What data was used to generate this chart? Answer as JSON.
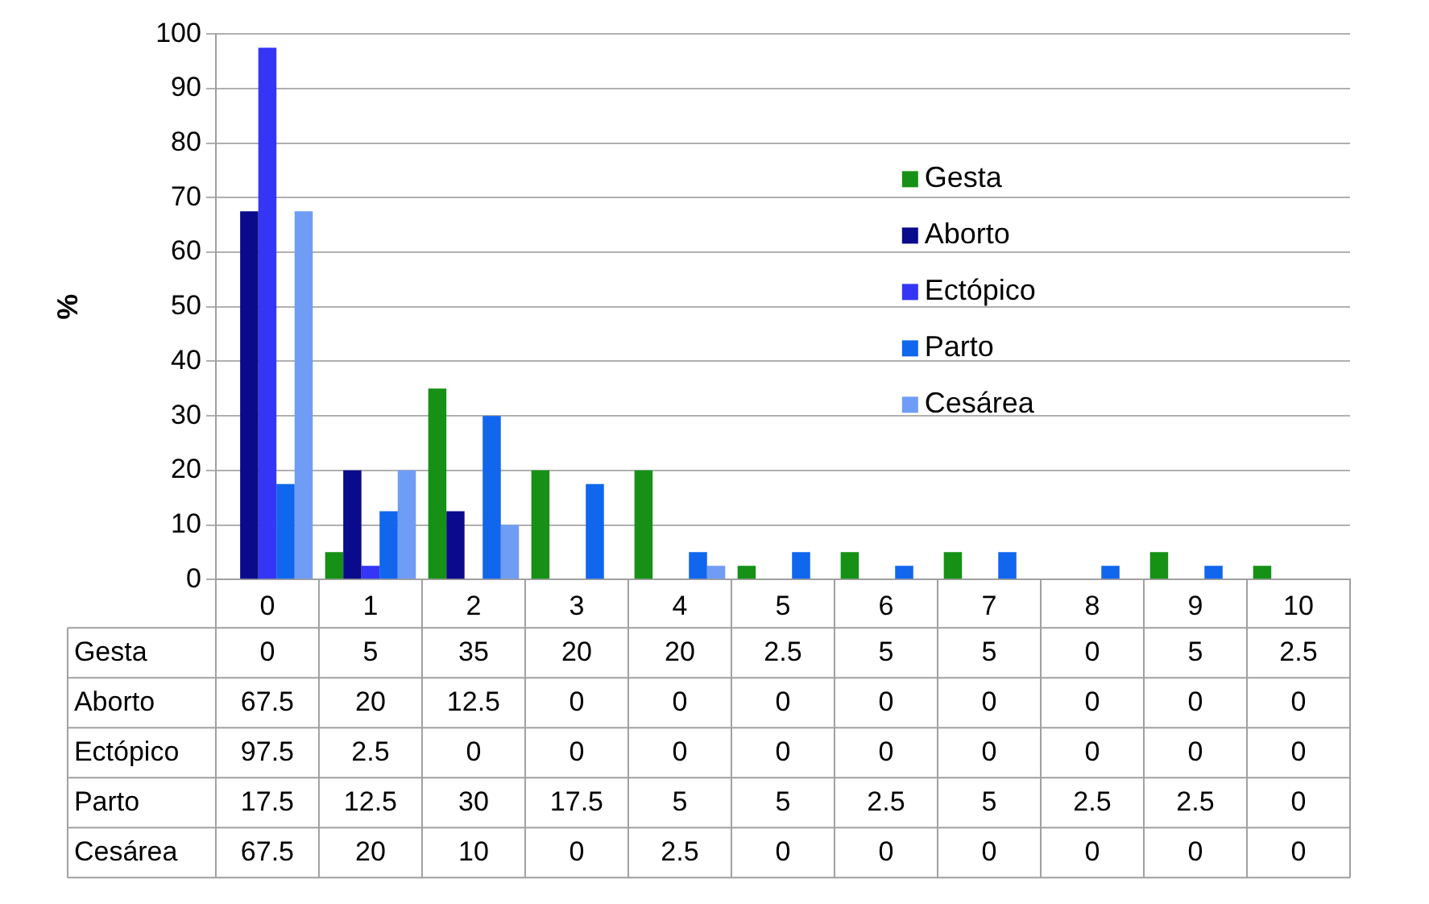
{
  "chart_data": {
    "type": "bar",
    "ylabel": "%",
    "categories": [
      "0",
      "1",
      "2",
      "3",
      "4",
      "5",
      "6",
      "7",
      "8",
      "9",
      "10"
    ],
    "series": [
      {
        "name": "Gesta",
        "color": "#169116",
        "values": [
          0,
          5,
          35,
          20,
          20,
          2.5,
          5,
          5,
          0,
          5,
          2.5
        ]
      },
      {
        "name": "Aborto",
        "color": "#0a0a8c",
        "values": [
          67.5,
          20,
          12.5,
          0,
          0,
          0,
          0,
          0,
          0,
          0,
          0
        ]
      },
      {
        "name": "Ectópico",
        "color": "#3535f5",
        "values": [
          97.5,
          2.5,
          0,
          0,
          0,
          0,
          0,
          0,
          0,
          0,
          0
        ]
      },
      {
        "name": "Parto",
        "color": "#1166ee",
        "values": [
          17.5,
          12.5,
          30,
          17.5,
          5,
          5,
          2.5,
          5,
          2.5,
          2.5,
          0
        ]
      },
      {
        "name": "Cesárea",
        "color": "#6f9cf5",
        "values": [
          67.5,
          20,
          10,
          0,
          2.5,
          0,
          0,
          0,
          0,
          0,
          0
        ]
      }
    ],
    "ylim": [
      0,
      100
    ],
    "yticks": [
      0,
      10,
      20,
      30,
      40,
      50,
      60,
      70,
      80,
      90,
      100
    ],
    "grid": "y",
    "legend": "right",
    "data_labels": true
  }
}
